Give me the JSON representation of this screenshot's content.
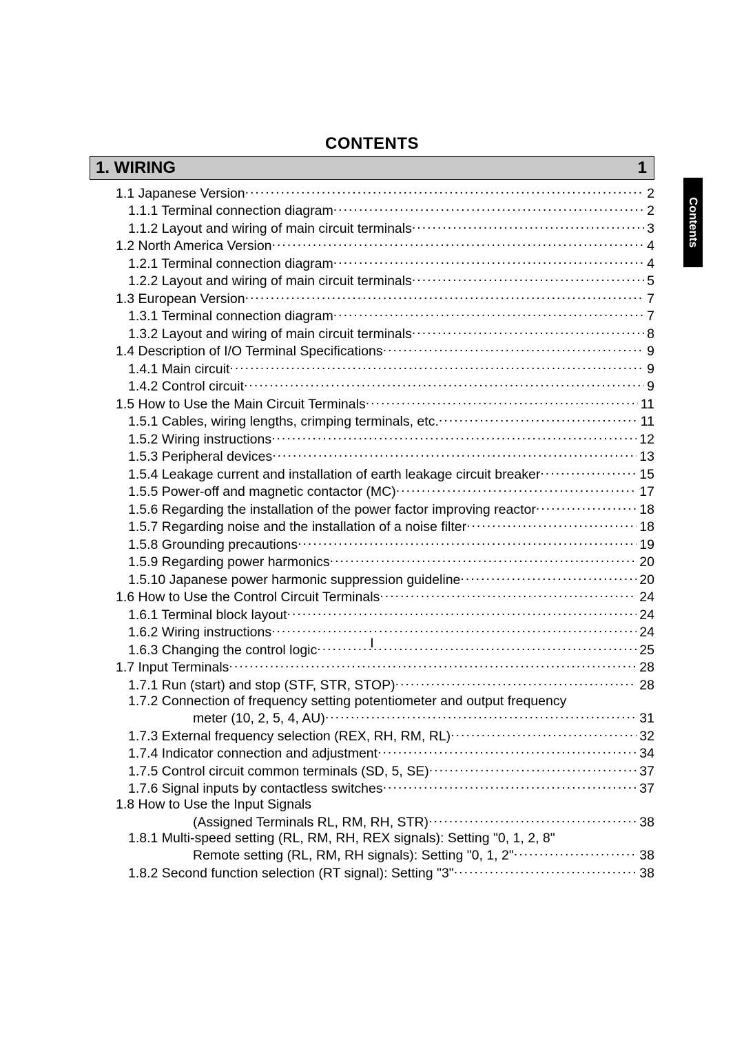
{
  "header": "CONTENTS",
  "side_tab": "Contents",
  "page_number_roman": "I",
  "section": {
    "title": "1. WIRING",
    "page": "1"
  },
  "toc": [
    {
      "level": 1,
      "label": "1.1 Japanese Version",
      "page": "2"
    },
    {
      "level": 2,
      "label": "1.1.1 Terminal connection diagram",
      "page": "2"
    },
    {
      "level": 2,
      "label": "1.1.2 Layout and wiring of main circuit terminals",
      "page": "3"
    },
    {
      "level": 1,
      "label": "1.2 North America Version",
      "page": "4"
    },
    {
      "level": 2,
      "label": "1.2.1 Terminal connection diagram",
      "page": "4"
    },
    {
      "level": 2,
      "label": "1.2.2 Layout and wiring of main circuit terminals",
      "page": "5"
    },
    {
      "level": 1,
      "label": "1.3 European Version",
      "page": "7"
    },
    {
      "level": 2,
      "label": "1.3.1 Terminal connection diagram",
      "page": "7"
    },
    {
      "level": 2,
      "label": "1.3.2 Layout and wiring of main circuit terminals",
      "page": "8"
    },
    {
      "level": 1,
      "label": "1.4 Description of I/O Terminal Specifications",
      "page": "9"
    },
    {
      "level": 2,
      "label": "1.4.1 Main circuit",
      "page": "9"
    },
    {
      "level": 2,
      "label": "1.4.2 Control circuit",
      "page": "9"
    },
    {
      "level": 1,
      "label": "1.5 How to Use the Main Circuit Terminals",
      "page": "11"
    },
    {
      "level": 2,
      "label": "1.5.1 Cables, wiring lengths, crimping terminals, etc.",
      "page": "11"
    },
    {
      "level": 2,
      "label": "1.5.2 Wiring instructions",
      "page": "12"
    },
    {
      "level": 2,
      "label": "1.5.3 Peripheral devices",
      "page": "13"
    },
    {
      "level": 2,
      "label": "1.5.4 Leakage current and installation of earth leakage circuit breaker",
      "page": "15"
    },
    {
      "level": 2,
      "label": "1.5.5 Power-off and magnetic contactor (MC)",
      "page": "17"
    },
    {
      "level": 2,
      "label": "1.5.6 Regarding the installation of the power factor improving reactor",
      "page": "18"
    },
    {
      "level": 2,
      "label": "1.5.7 Regarding noise and the installation of a noise filter",
      "page": "18"
    },
    {
      "level": 2,
      "label": "1.5.8 Grounding precautions",
      "page": "19"
    },
    {
      "level": 2,
      "label": "1.5.9 Regarding power harmonics",
      "page": "20"
    },
    {
      "level": 2,
      "label": "1.5.10 Japanese power harmonic suppression guideline",
      "page": "20"
    },
    {
      "level": 1,
      "label": "1.6 How to Use the Control Circuit Terminals",
      "page": "24"
    },
    {
      "level": 2,
      "label": "1.6.1 Terminal block layout",
      "page": "24"
    },
    {
      "level": 2,
      "label": "1.6.2 Wiring instructions",
      "page": "24"
    },
    {
      "level": 2,
      "label": "1.6.3 Changing the control logic",
      "page": "25"
    },
    {
      "level": 1,
      "label": "1.7 Input Terminals",
      "page": "28"
    },
    {
      "level": 2,
      "label": "1.7.1 Run (start) and stop (STF, STR, STOP)",
      "page": "28"
    },
    {
      "level": 2,
      "type": "multi",
      "label": "1.7.2 Connection of frequency setting potentiometer and output frequency",
      "cont_label": "meter (10, 2, 5, 4, AU)",
      "page": "31"
    },
    {
      "level": 2,
      "label": "1.7.3 External frequency selection (REX, RH, RM, RL)",
      "page": "32"
    },
    {
      "level": 2,
      "label": "1.7.4 Indicator connection and adjustment",
      "page": "34"
    },
    {
      "level": 2,
      "label": "1.7.5 Control circuit common terminals (SD, 5, SE)",
      "page": "37"
    },
    {
      "level": 2,
      "label": "1.7.6 Signal inputs by contactless switches",
      "page": "37"
    },
    {
      "level": 1,
      "type": "multi_lvl1",
      "label": "1.8 How to Use the Input Signals",
      "cont_label": "(Assigned Terminals RL, RM, RH, STR)",
      "page": "38"
    },
    {
      "level": 2,
      "type": "multi",
      "label": "1.8.1 Multi-speed setting (RL, RM, RH, REX signals): Setting \"0, 1, 2, 8\"",
      "cont_label": "Remote setting (RL, RM, RH signals): Setting \"0, 1, 2\"",
      "page": "38"
    },
    {
      "level": 2,
      "label": "1.8.2 Second function selection (RT signal): Setting \"3\"",
      "page": "38"
    }
  ]
}
